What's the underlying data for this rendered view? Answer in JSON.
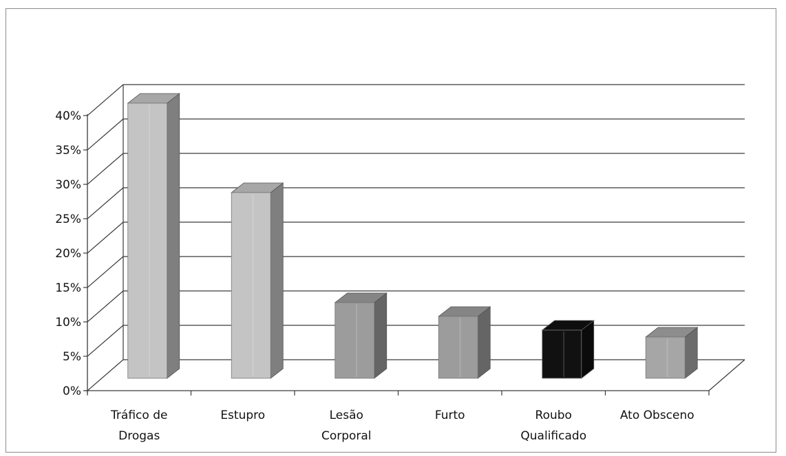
{
  "chart_data": {
    "type": "bar",
    "style": "3d-column",
    "categories": [
      [
        "Tráfico de",
        "Drogas"
      ],
      [
        "Estupro"
      ],
      [
        "Lesão",
        "Corporal"
      ],
      [
        "Furto"
      ],
      [
        "Roubo",
        "Qualificado"
      ],
      [
        "Ato Obsceno"
      ]
    ],
    "values": [
      40,
      27,
      11,
      9,
      7,
      6
    ],
    "bar_colors": [
      "#c4c4c4",
      "#c4c4c4",
      "#9c9c9c",
      "#9c9c9c",
      "#111111",
      "#a6a6a6"
    ],
    "y_ticks": [
      "0%",
      "5%",
      "10%",
      "15%",
      "20%",
      "25%",
      "30%",
      "35%",
      "40%"
    ],
    "ylim": [
      0,
      40
    ],
    "y_unit": "%",
    "grid": true,
    "legend": "none",
    "title": "",
    "xlabel": "",
    "ylabel": ""
  }
}
